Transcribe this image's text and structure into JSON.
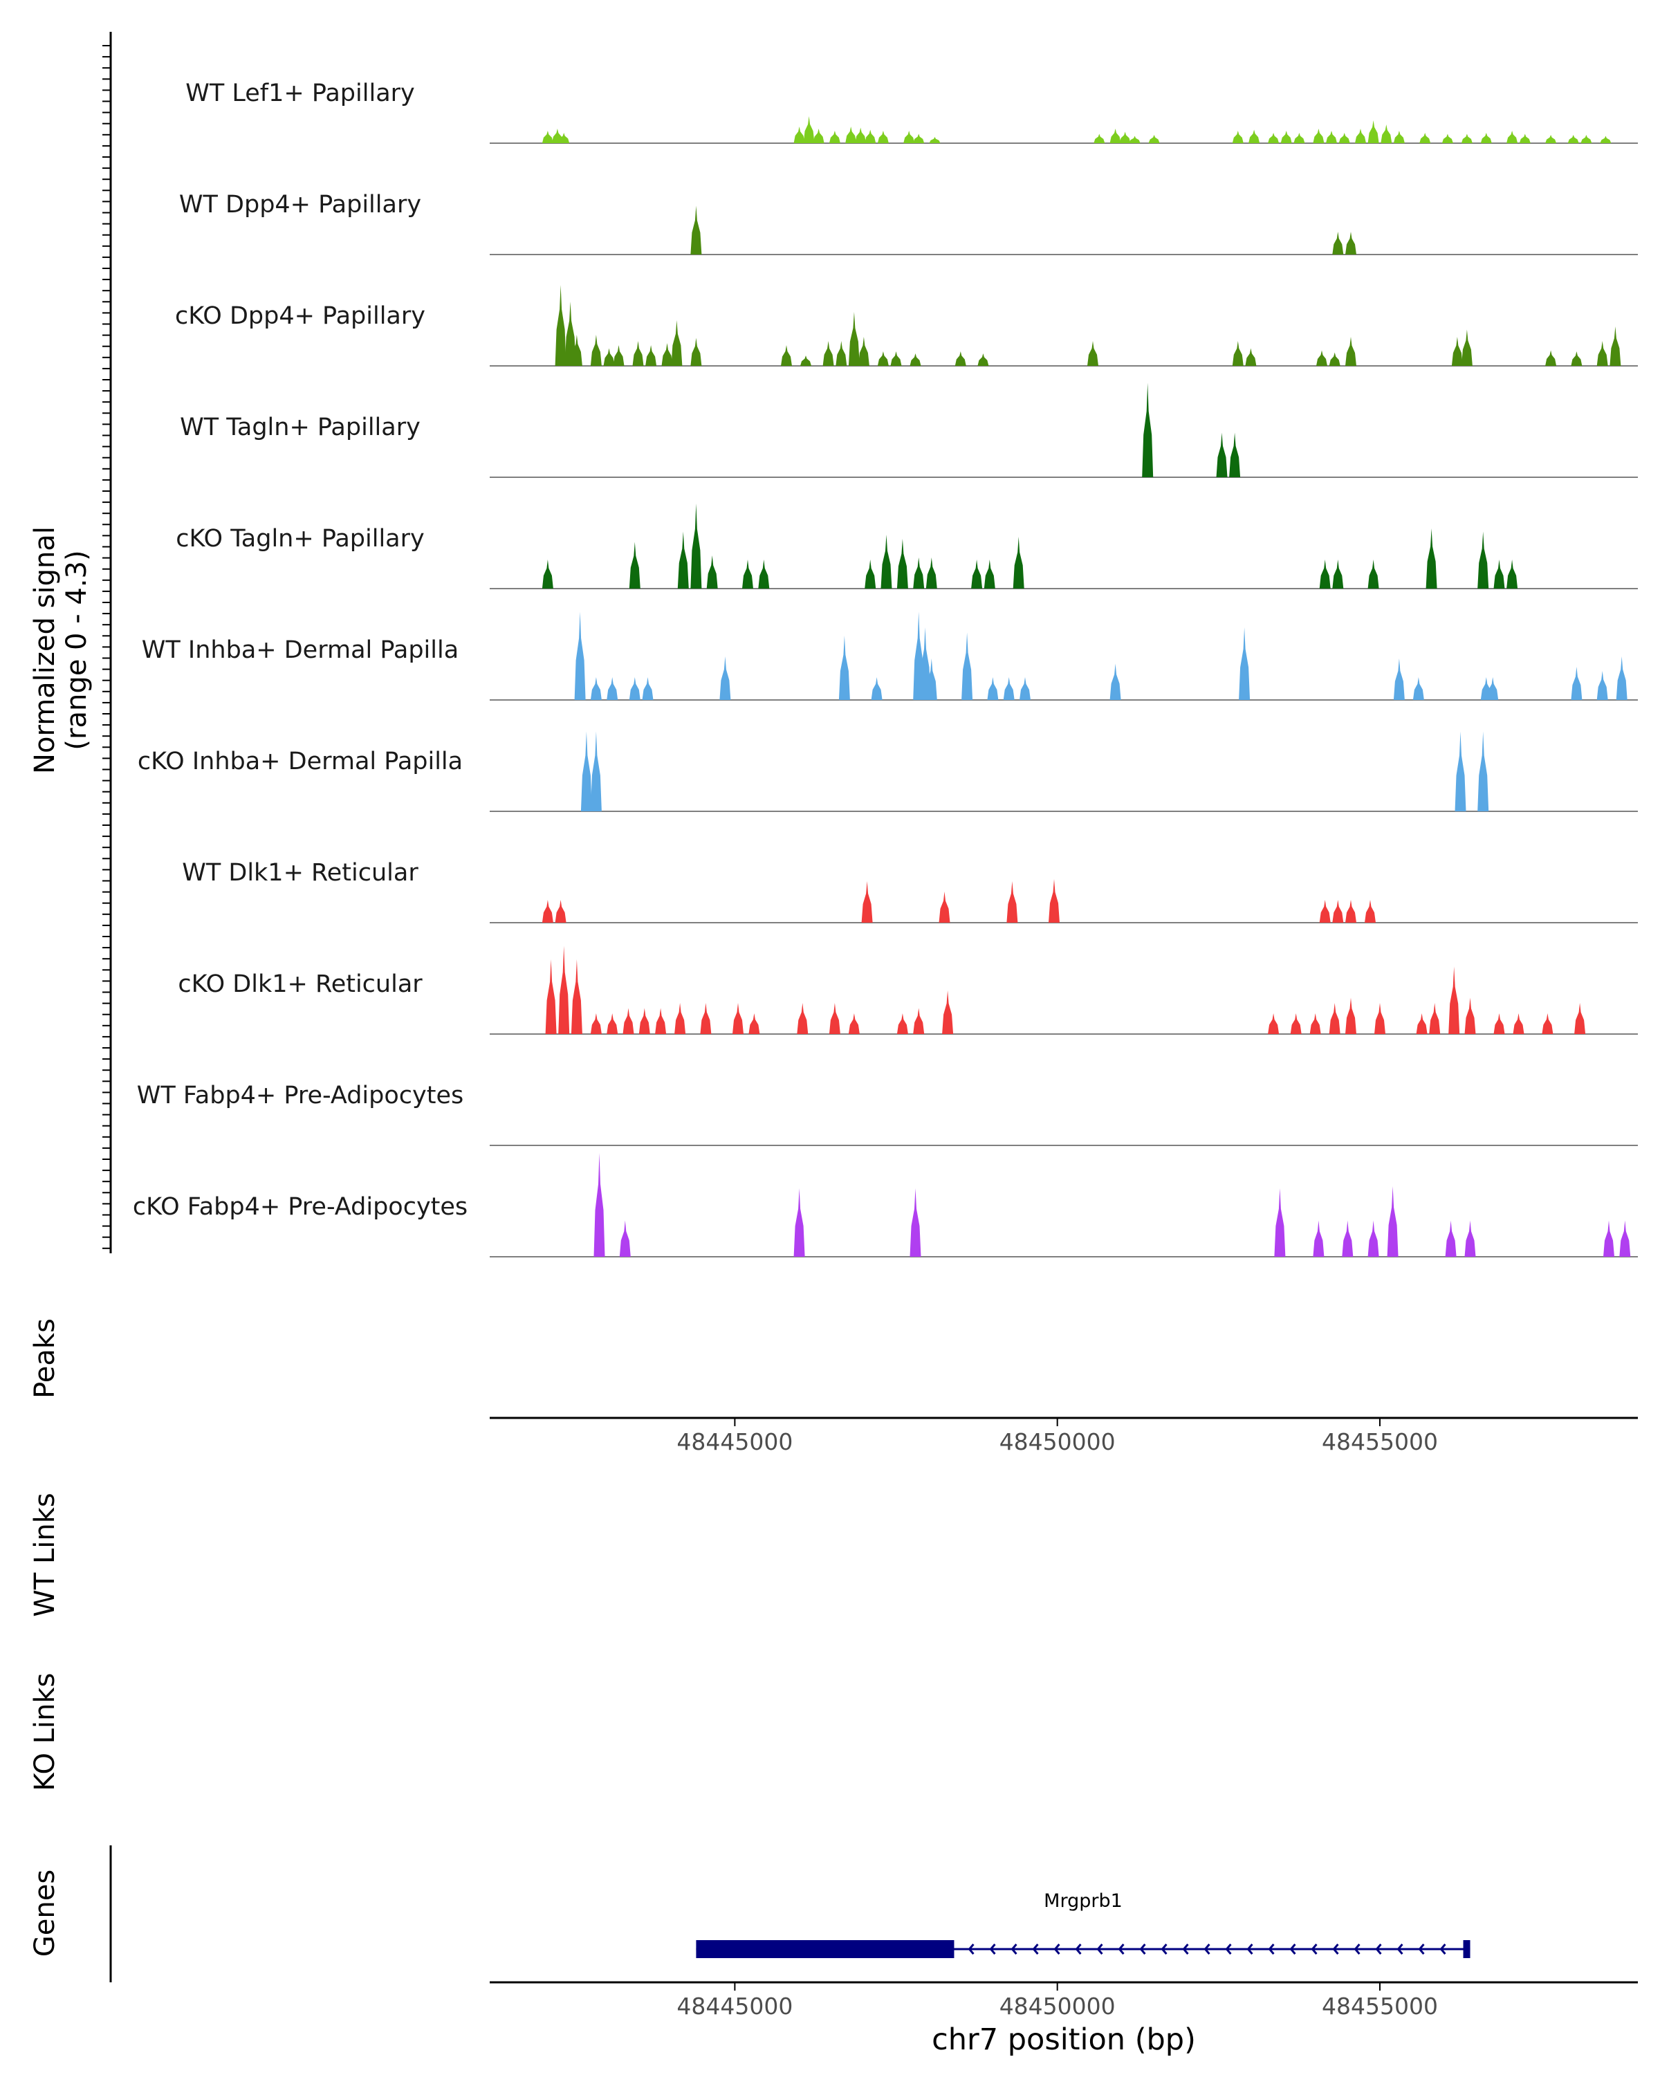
{
  "colors": {
    "lef1": "#7ccd1e",
    "dpp4": "#4a8a0e",
    "tagln": "#0d6a0d",
    "inhba": "#5aa8e4",
    "dlk1": "#f03a3a",
    "fabp4": "#b03ff0",
    "gene": "#000080",
    "axis": "#000000",
    "baseline": "#7f7f7f"
  },
  "chart_data": {
    "type": "area",
    "chromosome": "chr7",
    "xlim": [
      48441200,
      48459000
    ],
    "signal_ylabel_line1": "Normalized signal",
    "signal_ylabel_line2": "(range 0 - 4.3)",
    "signal_range": [
      0,
      4.3
    ],
    "x_ticks": [
      48445000,
      48450000,
      48455000
    ],
    "x_tick_labels": [
      "48445000",
      "48450000",
      "48455000"
    ],
    "xlabel": "chr7 position (bp)",
    "tracks": [
      {
        "label": "WT Lef1+ Papillary",
        "color_key": "lef1",
        "peaks": [
          [
            48442100,
            0.12
          ],
          [
            48442250,
            0.14
          ],
          [
            48442350,
            0.1
          ],
          [
            48446000,
            0.16
          ],
          [
            48446150,
            0.26
          ],
          [
            48446300,
            0.14
          ],
          [
            48446550,
            0.12
          ],
          [
            48446800,
            0.16
          ],
          [
            48446950,
            0.15
          ],
          [
            48447100,
            0.13
          ],
          [
            48447300,
            0.12
          ],
          [
            48447700,
            0.12
          ],
          [
            48447850,
            0.09
          ],
          [
            48448100,
            0.06
          ],
          [
            48450650,
            0.09
          ],
          [
            48450900,
            0.14
          ],
          [
            48451050,
            0.11
          ],
          [
            48451200,
            0.07
          ],
          [
            48451500,
            0.08
          ],
          [
            48452800,
            0.12
          ],
          [
            48453050,
            0.13
          ],
          [
            48453350,
            0.1
          ],
          [
            48453550,
            0.12
          ],
          [
            48453750,
            0.1
          ],
          [
            48454050,
            0.14
          ],
          [
            48454250,
            0.12
          ],
          [
            48454450,
            0.1
          ],
          [
            48454700,
            0.14
          ],
          [
            48454900,
            0.22
          ],
          [
            48455100,
            0.18
          ],
          [
            48455300,
            0.12
          ],
          [
            48455700,
            0.1
          ],
          [
            48456050,
            0.09
          ],
          [
            48456350,
            0.09
          ],
          [
            48456650,
            0.1
          ],
          [
            48457050,
            0.12
          ],
          [
            48457250,
            0.09
          ],
          [
            48457650,
            0.08
          ],
          [
            48458000,
            0.08
          ],
          [
            48458200,
            0.08
          ],
          [
            48458500,
            0.07
          ]
        ]
      },
      {
        "label": "WT Dpp4+ Papillary",
        "color_key": "dpp4",
        "peaks": [
          [
            48444400,
            0.47
          ],
          [
            48454350,
            0.22
          ],
          [
            48454550,
            0.22
          ]
        ]
      },
      {
        "label": "cKO Dpp4+ Papillary",
        "color_key": "dpp4",
        "peaks": [
          [
            48442300,
            0.78
          ],
          [
            48442450,
            0.62
          ],
          [
            48442550,
            0.3
          ],
          [
            48442850,
            0.3
          ],
          [
            48443050,
            0.17
          ],
          [
            48443200,
            0.2
          ],
          [
            48443500,
            0.24
          ],
          [
            48443700,
            0.2
          ],
          [
            48443950,
            0.22
          ],
          [
            48444100,
            0.44
          ],
          [
            48444400,
            0.27
          ],
          [
            48445800,
            0.2
          ],
          [
            48446100,
            0.1
          ],
          [
            48446450,
            0.24
          ],
          [
            48446650,
            0.24
          ],
          [
            48446850,
            0.52
          ],
          [
            48447000,
            0.28
          ],
          [
            48447300,
            0.14
          ],
          [
            48447500,
            0.14
          ],
          [
            48447800,
            0.12
          ],
          [
            48448500,
            0.14
          ],
          [
            48448850,
            0.12
          ],
          [
            48450550,
            0.24
          ],
          [
            48452800,
            0.24
          ],
          [
            48453000,
            0.17
          ],
          [
            48454100,
            0.15
          ],
          [
            48454300,
            0.13
          ],
          [
            48454550,
            0.28
          ],
          [
            48456200,
            0.28
          ],
          [
            48456350,
            0.35
          ],
          [
            48457650,
            0.15
          ],
          [
            48458050,
            0.14
          ],
          [
            48458450,
            0.24
          ],
          [
            48458650,
            0.38
          ]
        ]
      },
      {
        "label": "WT Tagln+ Papillary",
        "color_key": "tagln",
        "peaks": [
          [
            48451400,
            0.91
          ],
          [
            48452550,
            0.43
          ],
          [
            48452750,
            0.43
          ]
        ]
      },
      {
        "label": "cKO Tagln+ Papillary",
        "color_key": "tagln",
        "peaks": [
          [
            48442100,
            0.28
          ],
          [
            48443450,
            0.45
          ],
          [
            48444200,
            0.55
          ],
          [
            48444400,
            0.82
          ],
          [
            48444650,
            0.32
          ],
          [
            48445200,
            0.28
          ],
          [
            48445450,
            0.28
          ],
          [
            48447100,
            0.28
          ],
          [
            48447350,
            0.52
          ],
          [
            48447600,
            0.48
          ],
          [
            48447850,
            0.3
          ],
          [
            48448050,
            0.3
          ],
          [
            48448750,
            0.28
          ],
          [
            48448950,
            0.28
          ],
          [
            48449400,
            0.5
          ],
          [
            48454150,
            0.28
          ],
          [
            48454350,
            0.28
          ],
          [
            48454900,
            0.28
          ],
          [
            48455800,
            0.58
          ],
          [
            48456600,
            0.55
          ],
          [
            48456850,
            0.28
          ],
          [
            48457050,
            0.28
          ]
        ]
      },
      {
        "label": "WT Inhba+ Dermal Papilla",
        "color_key": "inhba",
        "peaks": [
          [
            48442600,
            0.85
          ],
          [
            48442850,
            0.22
          ],
          [
            48443100,
            0.22
          ],
          [
            48443450,
            0.22
          ],
          [
            48443650,
            0.22
          ],
          [
            48444850,
            0.42
          ],
          [
            48446700,
            0.62
          ],
          [
            48447200,
            0.22
          ],
          [
            48447850,
            0.85
          ],
          [
            48447950,
            0.7
          ],
          [
            48448050,
            0.4
          ],
          [
            48448600,
            0.65
          ],
          [
            48449000,
            0.22
          ],
          [
            48449250,
            0.22
          ],
          [
            48449500,
            0.22
          ],
          [
            48450900,
            0.35
          ],
          [
            48452900,
            0.7
          ],
          [
            48455300,
            0.4
          ],
          [
            48455600,
            0.22
          ],
          [
            48456650,
            0.22
          ],
          [
            48456750,
            0.22
          ],
          [
            48458050,
            0.32
          ],
          [
            48458450,
            0.28
          ],
          [
            48458750,
            0.42
          ]
        ]
      },
      {
        "label": "cKO Inhba+ Dermal Papilla",
        "color_key": "inhba",
        "peaks": [
          [
            48442700,
            0.77
          ],
          [
            48442850,
            0.77
          ],
          [
            48456250,
            0.77
          ],
          [
            48456600,
            0.77
          ]
        ]
      },
      {
        "label": "WT Dlk1+ Reticular",
        "color_key": "dlk1",
        "peaks": [
          [
            48442100,
            0.22
          ],
          [
            48442300,
            0.22
          ],
          [
            48447050,
            0.4
          ],
          [
            48448250,
            0.3
          ],
          [
            48449300,
            0.4
          ],
          [
            48449950,
            0.42
          ],
          [
            48454150,
            0.22
          ],
          [
            48454350,
            0.22
          ],
          [
            48454550,
            0.22
          ],
          [
            48454850,
            0.22
          ]
        ]
      },
      {
        "label": "cKO Dlk1+ Reticular",
        "color_key": "dlk1",
        "peaks": [
          [
            48442150,
            0.72
          ],
          [
            48442350,
            0.85
          ],
          [
            48442550,
            0.72
          ],
          [
            48442850,
            0.2
          ],
          [
            48443100,
            0.2
          ],
          [
            48443350,
            0.25
          ],
          [
            48443600,
            0.25
          ],
          [
            48443850,
            0.25
          ],
          [
            48444150,
            0.3
          ],
          [
            48444550,
            0.3
          ],
          [
            48445050,
            0.3
          ],
          [
            48445300,
            0.2
          ],
          [
            48446050,
            0.3
          ],
          [
            48446550,
            0.3
          ],
          [
            48446850,
            0.2
          ],
          [
            48447600,
            0.2
          ],
          [
            48447850,
            0.25
          ],
          [
            48448300,
            0.42
          ],
          [
            48453350,
            0.2
          ],
          [
            48453700,
            0.2
          ],
          [
            48454000,
            0.2
          ],
          [
            48454300,
            0.3
          ],
          [
            48454550,
            0.35
          ],
          [
            48455000,
            0.3
          ],
          [
            48455650,
            0.2
          ],
          [
            48455850,
            0.3
          ],
          [
            48456150,
            0.65
          ],
          [
            48456400,
            0.35
          ],
          [
            48456850,
            0.2
          ],
          [
            48457150,
            0.2
          ],
          [
            48457600,
            0.2
          ],
          [
            48458100,
            0.3
          ]
        ]
      },
      {
        "label": "WT Fabp4+ Pre-Adipocytes",
        "color_key": "fabp4",
        "peaks": []
      },
      {
        "label": "cKO Fabp4+ Pre-Adipocytes",
        "color_key": "fabp4",
        "peaks": [
          [
            48442900,
            1.0
          ],
          [
            48443300,
            0.35
          ],
          [
            48446000,
            0.66
          ],
          [
            48447800,
            0.66
          ],
          [
            48453450,
            0.66
          ],
          [
            48454050,
            0.35
          ],
          [
            48454500,
            0.35
          ],
          [
            48454900,
            0.35
          ],
          [
            48455200,
            0.68
          ],
          [
            48456100,
            0.35
          ],
          [
            48456400,
            0.35
          ],
          [
            48458550,
            0.35
          ],
          [
            48458800,
            0.35
          ]
        ]
      }
    ],
    "panels": {
      "peaks": "Peaks",
      "wt_links": "WT Links",
      "ko_links": "KO Links",
      "genes": "Genes"
    },
    "gene": {
      "name": "Mrgprb1",
      "start": 48444400,
      "end": 48456400,
      "thick_end": 48448400,
      "strand": "-"
    }
  }
}
